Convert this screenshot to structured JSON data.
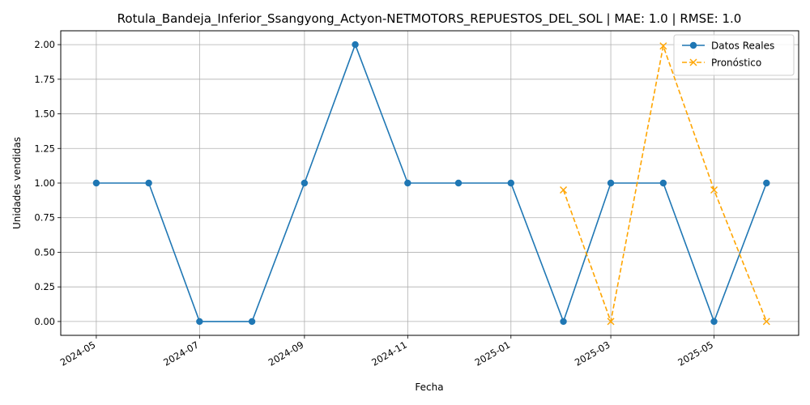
{
  "chart_data": {
    "type": "line",
    "title": "Rotula_Bandeja_Inferior_Ssangyong_Actyon-NETMOTORS_REPUESTOS_DEL_SOL | MAE: 1.0 | RMSE: 1.0",
    "xlabel": "Fecha",
    "ylabel": "Unidades vendidas",
    "grid": true,
    "legend_position": "top-right",
    "x_domain": [
      "2024-04-10",
      "2025-06-20"
    ],
    "ylim": [
      -0.1,
      2.1
    ],
    "x_ticks": [
      "2024-05-01",
      "2024-07-01",
      "2024-09-01",
      "2024-11-01",
      "2025-01-01",
      "2025-03-01",
      "2025-05-01"
    ],
    "x_tick_labels": [
      "2024-05",
      "2024-07",
      "2024-09",
      "2024-11",
      "2025-01",
      "2025-03",
      "2025-05"
    ],
    "y_ticks": [
      0.0,
      0.25,
      0.5,
      0.75,
      1.0,
      1.25,
      1.5,
      1.75,
      2.0
    ],
    "y_tick_labels": [
      "0.00",
      "0.25",
      "0.50",
      "0.75",
      "1.00",
      "1.25",
      "1.50",
      "1.75",
      "2.00"
    ],
    "series": [
      {
        "name": "Datos Reales",
        "color": "#1f77b4",
        "line_style": "solid",
        "marker": "circle",
        "x": [
          "2024-05-01",
          "2024-06-01",
          "2024-07-01",
          "2024-08-01",
          "2024-09-01",
          "2024-10-01",
          "2024-11-01",
          "2024-12-01",
          "2025-01-01",
          "2025-02-01",
          "2025-03-01",
          "2025-04-01",
          "2025-05-01",
          "2025-06-01"
        ],
        "y": [
          1,
          1,
          0,
          0,
          1,
          2,
          1,
          1,
          1,
          0,
          1,
          1,
          0,
          1
        ]
      },
      {
        "name": "Pronóstico",
        "color": "#ffa500",
        "line_style": "dashed",
        "marker": "x",
        "x": [
          "2025-02-01",
          "2025-03-01",
          "2025-04-01",
          "2025-05-01",
          "2025-06-01"
        ],
        "y": [
          0.95,
          0.0,
          1.99,
          0.95,
          0.0
        ]
      }
    ]
  }
}
